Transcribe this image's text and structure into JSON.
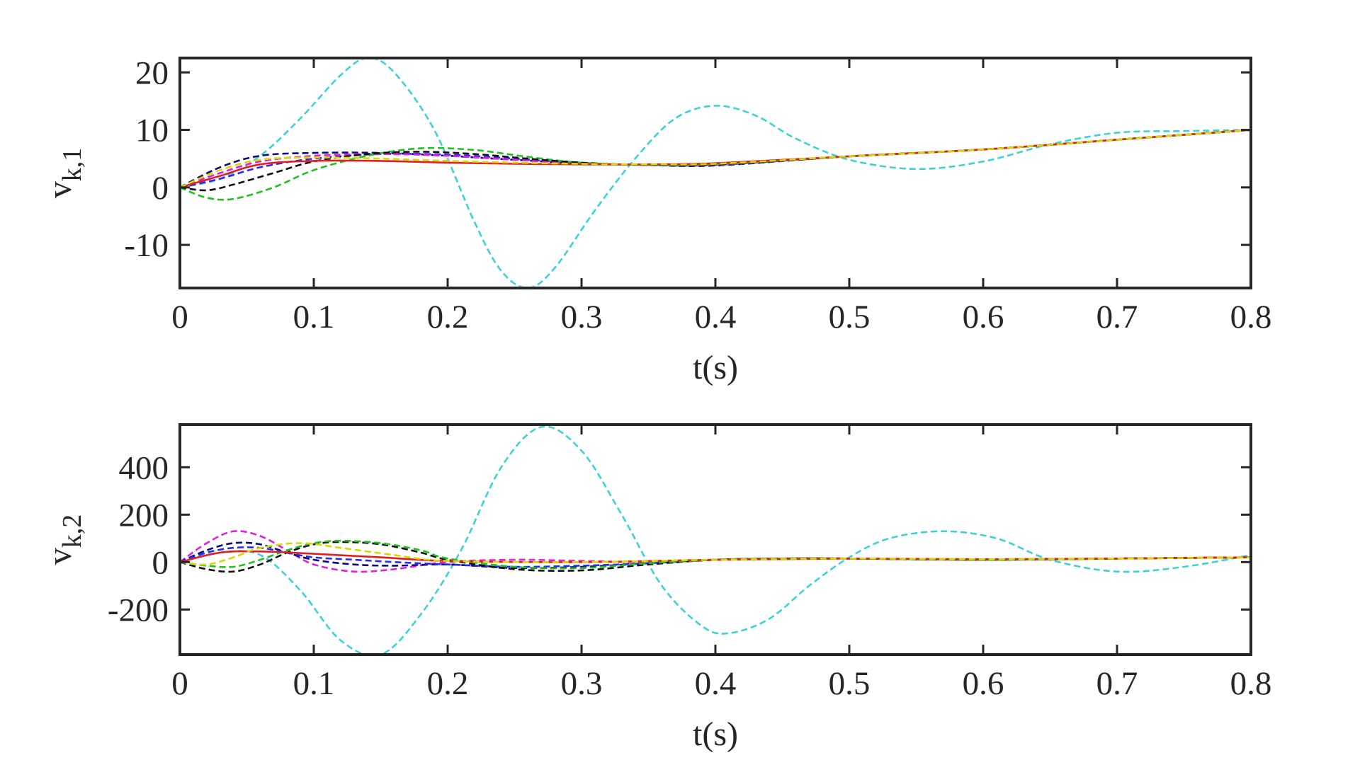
{
  "chart_data": [
    {
      "type": "line",
      "title": "",
      "xlabel": "t(s)",
      "ylabel": {
        "base": "v",
        "subscript": "k,1"
      },
      "xlim": [
        0,
        0.8
      ],
      "ylim": [
        -17.5,
        22.5
      ],
      "xticks": [
        0,
        0.1,
        0.2,
        0.3,
        0.4,
        0.5,
        0.6,
        0.7,
        0.8
      ],
      "xtick_labels": [
        "0",
        "0.1",
        "0.2",
        "0.3",
        "0.4",
        "0.5",
        "0.6",
        "0.7",
        "0.8"
      ],
      "yticks": [
        -10,
        0,
        10,
        20
      ],
      "ytick_labels": [
        "-10",
        "0",
        "10",
        "20"
      ],
      "grid": false,
      "legend": "none",
      "series": [
        {
          "name": "cyan",
          "color": "#3fd0d8",
          "dashed": true,
          "x": [
            0,
            0.03,
            0.06,
            0.09,
            0.12,
            0.14,
            0.16,
            0.19,
            0.22,
            0.24,
            0.26,
            0.28,
            0.31,
            0.34,
            0.37,
            0.4,
            0.43,
            0.46,
            0.5,
            0.55,
            0.6,
            0.65,
            0.7,
            0.75,
            0.8
          ],
          "y": [
            0,
            1.5,
            5.5,
            12,
            19.5,
            22.5,
            20,
            10,
            -6,
            -14.5,
            -17.5,
            -14,
            -4,
            5,
            12,
            14.2,
            12.5,
            8.5,
            4.8,
            3.2,
            4.5,
            7.5,
            9.5,
            9.8,
            10
          ]
        },
        {
          "name": "navy",
          "color": "#0a0a78",
          "dashed": true,
          "x": [
            0,
            0.03,
            0.06,
            0.1,
            0.15,
            0.2,
            0.25,
            0.3,
            0.35,
            0.4,
            0.5,
            0.6,
            0.7,
            0.8
          ],
          "y": [
            0,
            3.5,
            5.5,
            6,
            6,
            5.5,
            4.8,
            4.2,
            3.9,
            3.8,
            5.4,
            6.6,
            8.3,
            10
          ]
        },
        {
          "name": "blue",
          "color": "#2a2aee",
          "dashed": true,
          "x": [
            0,
            0.03,
            0.06,
            0.1,
            0.15,
            0.2,
            0.25,
            0.3,
            0.35,
            0.4,
            0.5,
            0.6,
            0.7,
            0.8
          ],
          "y": [
            0,
            1.5,
            3.5,
            5,
            5.8,
            5.7,
            5,
            4.2,
            3.9,
            3.9,
            5.4,
            6.6,
            8.3,
            10
          ]
        },
        {
          "name": "magenta",
          "color": "#e020e0",
          "dashed": true,
          "x": [
            0,
            0.03,
            0.06,
            0.1,
            0.15,
            0.2,
            0.25,
            0.3,
            0.35,
            0.4,
            0.5,
            0.6,
            0.7,
            0.8
          ],
          "y": [
            0,
            2.5,
            4.5,
            5.5,
            5.8,
            5.5,
            4.8,
            4.2,
            3.9,
            3.9,
            5.4,
            6.6,
            8.3,
            10
          ]
        },
        {
          "name": "green",
          "color": "#20c020",
          "dashed": true,
          "x": [
            0,
            0.02,
            0.04,
            0.07,
            0.1,
            0.14,
            0.18,
            0.22,
            0.26,
            0.3,
            0.35,
            0.4,
            0.5,
            0.6,
            0.7,
            0.8
          ],
          "y": [
            0,
            -1.8,
            -2,
            0,
            3,
            5.5,
            6.8,
            6.5,
            5.3,
            4.3,
            3.9,
            4,
            5.4,
            6.6,
            8.3,
            10
          ]
        },
        {
          "name": "black",
          "color": "#111111",
          "dashed": true,
          "x": [
            0,
            0.02,
            0.04,
            0.07,
            0.1,
            0.14,
            0.18,
            0.22,
            0.26,
            0.3,
            0.35,
            0.4,
            0.5,
            0.6,
            0.7,
            0.8
          ],
          "y": [
            0,
            -0.5,
            0.5,
            2.5,
            4.5,
            5.8,
            6.2,
            5.8,
            5,
            4.3,
            3.9,
            4,
            5.4,
            6.6,
            8.3,
            10
          ]
        },
        {
          "name": "red",
          "color": "#e02020",
          "dashed": false,
          "x": [
            0,
            0.03,
            0.06,
            0.1,
            0.15,
            0.2,
            0.25,
            0.3,
            0.35,
            0.4,
            0.5,
            0.6,
            0.7,
            0.8
          ],
          "y": [
            0,
            2,
            4,
            4.6,
            4.6,
            4.3,
            4.1,
            4,
            4,
            4.2,
            5.4,
            6.6,
            8.3,
            10
          ]
        },
        {
          "name": "yellow",
          "color": "#d8d800",
          "dashed": true,
          "x": [
            0,
            0.03,
            0.06,
            0.1,
            0.15,
            0.2,
            0.25,
            0.3,
            0.35,
            0.4,
            0.5,
            0.6,
            0.7,
            0.8
          ],
          "y": [
            0,
            3,
            4.8,
            5.2,
            5,
            4.6,
            4.3,
            4.1,
            4,
            4.1,
            5.4,
            6.6,
            8.3,
            10
          ]
        }
      ]
    },
    {
      "type": "line",
      "title": "",
      "xlabel": "t(s)",
      "ylabel": {
        "base": "v",
        "subscript": "k,2"
      },
      "xlim": [
        0,
        0.8
      ],
      "ylim": [
        -390,
        580
      ],
      "xticks": [
        0,
        0.1,
        0.2,
        0.3,
        0.4,
        0.5,
        0.6,
        0.7,
        0.8
      ],
      "xtick_labels": [
        "0",
        "0.1",
        "0.2",
        "0.3",
        "0.4",
        "0.5",
        "0.6",
        "0.7",
        "0.8"
      ],
      "yticks": [
        -200,
        0,
        200,
        400
      ],
      "ytick_labels": [
        "-200",
        "0",
        "200",
        "400"
      ],
      "grid": false,
      "legend": "none",
      "series": [
        {
          "name": "cyan",
          "color": "#3fd0d8",
          "dashed": true,
          "x": [
            0,
            0.03,
            0.06,
            0.09,
            0.12,
            0.15,
            0.18,
            0.21,
            0.24,
            0.27,
            0.3,
            0.33,
            0.36,
            0.39,
            0.41,
            0.44,
            0.47,
            0.5,
            0.53,
            0.57,
            0.61,
            0.65,
            0.7,
            0.75,
            0.8
          ],
          "y": [
            0,
            40,
            30,
            -120,
            -330,
            -390,
            -220,
            50,
            400,
            570,
            470,
            200,
            -100,
            -270,
            -300,
            -240,
            -100,
            20,
            100,
            130,
            100,
            10,
            -40,
            -20,
            30
          ]
        },
        {
          "name": "magenta",
          "color": "#e020e0",
          "dashed": true,
          "x": [
            0,
            0.02,
            0.04,
            0.06,
            0.08,
            0.1,
            0.13,
            0.16,
            0.2,
            0.25,
            0.3,
            0.35,
            0.4,
            0.45,
            0.5,
            0.6,
            0.7,
            0.8
          ],
          "y": [
            0,
            80,
            130,
            110,
            50,
            -10,
            -40,
            -30,
            0,
            10,
            5,
            0,
            10,
            15,
            15,
            10,
            15,
            20
          ]
        },
        {
          "name": "navy",
          "color": "#0a0a78",
          "dashed": true,
          "x": [
            0,
            0.02,
            0.04,
            0.06,
            0.08,
            0.1,
            0.13,
            0.16,
            0.2,
            0.25,
            0.3,
            0.35,
            0.4,
            0.45,
            0.5,
            0.6,
            0.7,
            0.8
          ],
          "y": [
            0,
            50,
            80,
            75,
            40,
            10,
            -10,
            -15,
            -10,
            -25,
            -20,
            -5,
            10,
            15,
            15,
            10,
            15,
            20
          ]
        },
        {
          "name": "blue",
          "color": "#2a2aee",
          "dashed": true,
          "x": [
            0,
            0.02,
            0.04,
            0.06,
            0.08,
            0.1,
            0.13,
            0.16,
            0.2,
            0.25,
            0.3,
            0.35,
            0.4,
            0.45,
            0.5,
            0.6,
            0.7,
            0.8
          ],
          "y": [
            0,
            40,
            60,
            60,
            40,
            20,
            10,
            0,
            -10,
            -20,
            -15,
            -5,
            10,
            15,
            15,
            10,
            15,
            20
          ]
        },
        {
          "name": "black",
          "color": "#111111",
          "dashed": true,
          "x": [
            0,
            0.02,
            0.04,
            0.06,
            0.08,
            0.1,
            0.12,
            0.15,
            0.18,
            0.2,
            0.25,
            0.3,
            0.35,
            0.4,
            0.45,
            0.5,
            0.6,
            0.7,
            0.8
          ],
          "y": [
            0,
            -30,
            -40,
            -10,
            40,
            75,
            85,
            75,
            40,
            10,
            -30,
            -35,
            -10,
            10,
            15,
            15,
            10,
            15,
            20
          ]
        },
        {
          "name": "green",
          "color": "#20c020",
          "dashed": true,
          "x": [
            0,
            0.02,
            0.04,
            0.06,
            0.08,
            0.1,
            0.12,
            0.15,
            0.18,
            0.2,
            0.25,
            0.3,
            0.35,
            0.4,
            0.45,
            0.5,
            0.6,
            0.7,
            0.8
          ],
          "y": [
            0,
            -15,
            -20,
            10,
            50,
            80,
            90,
            80,
            50,
            15,
            -20,
            -25,
            -5,
            10,
            15,
            15,
            10,
            15,
            20
          ]
        },
        {
          "name": "red",
          "color": "#e02020",
          "dashed": false,
          "x": [
            0,
            0.03,
            0.06,
            0.1,
            0.15,
            0.2,
            0.3,
            0.4,
            0.5,
            0.6,
            0.7,
            0.8
          ],
          "y": [
            0,
            40,
            45,
            35,
            20,
            5,
            0,
            10,
            15,
            12,
            15,
            20
          ]
        },
        {
          "name": "yellow",
          "color": "#d8d800",
          "dashed": true,
          "x": [
            0,
            0.02,
            0.04,
            0.06,
            0.09,
            0.12,
            0.16,
            0.2,
            0.3,
            0.4,
            0.5,
            0.6,
            0.7,
            0.8
          ],
          "y": [
            0,
            -10,
            20,
            60,
            80,
            60,
            30,
            5,
            0,
            10,
            15,
            12,
            15,
            20
          ]
        }
      ]
    }
  ]
}
